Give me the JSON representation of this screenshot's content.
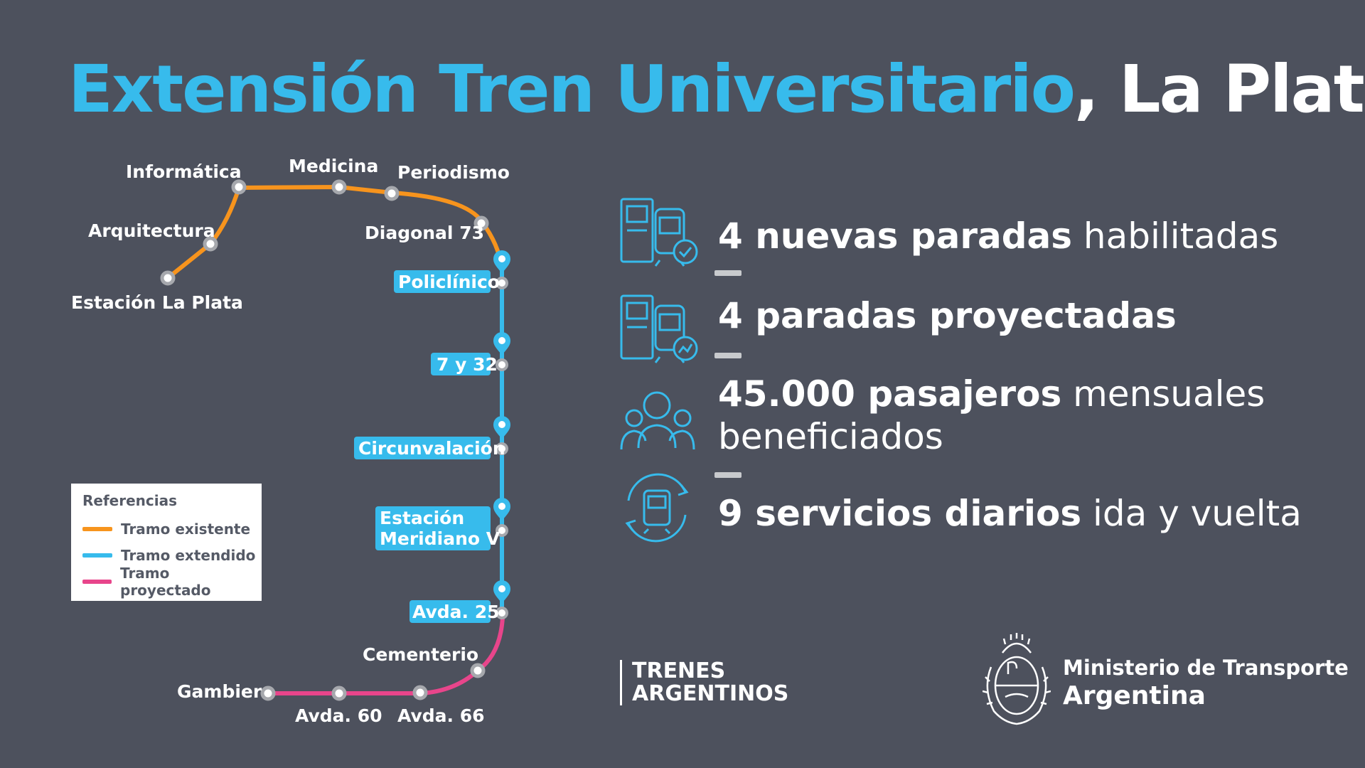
{
  "title": {
    "highlight": "Extensión Tren Universitario",
    "rest": ", La Plata"
  },
  "stations_existing": {
    "estacion_la_plata": "Estación La Plata",
    "arquitectura": "Arquitectura",
    "informatica": "Informática",
    "medicina": "Medicina",
    "periodismo": "Periodismo",
    "diagonal_73": "Diagonal 73"
  },
  "stations_extended": {
    "policlinico": "Policlínico",
    "siete_y_32": "7 y 32",
    "circunvalacion": "Circunvalación",
    "meridiano_1": "Estación",
    "meridiano_2": "Meridiano V",
    "avda_25": "Avda. 25"
  },
  "stations_projected": {
    "cementerio": "Cementerio",
    "avda_66": "Avda. 66",
    "avda_60": "Avda. 60",
    "gambier": "Gambier"
  },
  "legend": {
    "title": "Referencias",
    "items": [
      {
        "label": "Tramo existente",
        "color": "#f7941d"
      },
      {
        "label": "Tramo extendido",
        "color": "#37bbec"
      },
      {
        "label": "Tramo proyectado",
        "color": "#e8458b"
      }
    ]
  },
  "stats": [
    {
      "bold": "4 nuevas paradas",
      "rest": " habilitadas",
      "icon": "train-stops-check-icon"
    },
    {
      "bold": "4 paradas proyectadas",
      "rest": "",
      "icon": "train-stops-chart-icon"
    },
    {
      "bold": "45.000 pasajeros",
      "rest": " mensuales",
      "line2": "beneficiados",
      "icon": "passengers-icon"
    },
    {
      "bold": "9 servicios diarios",
      "rest": " ida y vuelta",
      "icon": "train-roundtrip-icon"
    }
  ],
  "brand": {
    "trenes_1": "TRENES",
    "trenes_2": "ARGENTINOS",
    "ministerio_1": "Ministerio de Transporte",
    "ministerio_2": "Argentina"
  },
  "colors": {
    "existing": "#f7941d",
    "extended": "#37bbec",
    "projected": "#e8458b",
    "background": "#4d515d"
  }
}
